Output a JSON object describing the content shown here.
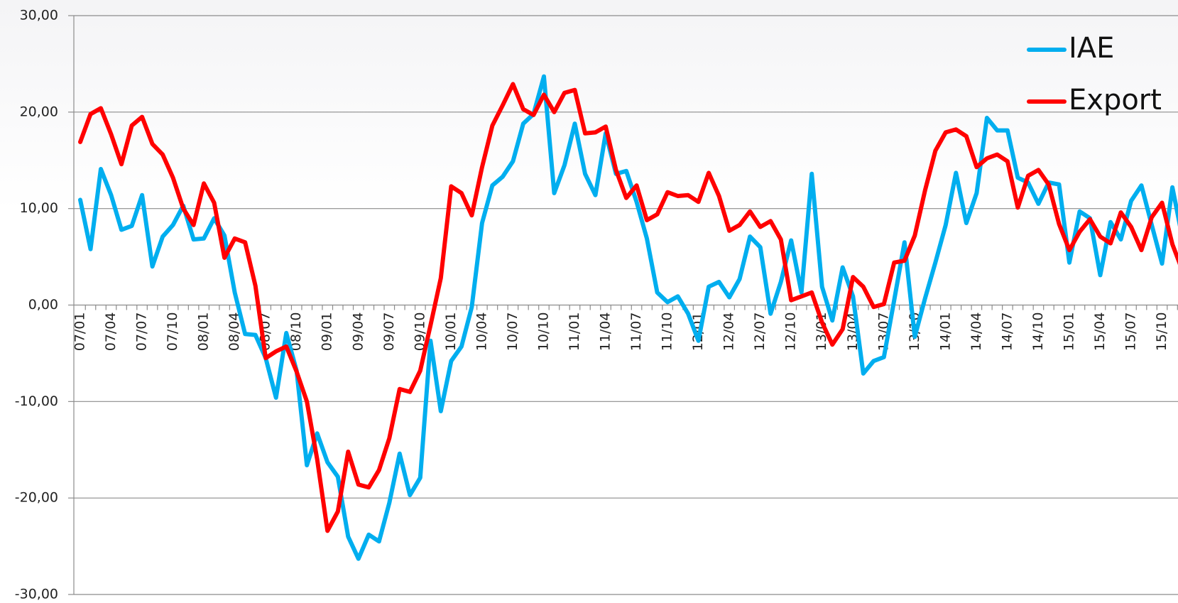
{
  "chart_data": {
    "type": "line",
    "categories": [
      "07/01",
      null,
      null,
      "07/04",
      null,
      null,
      "07/07",
      null,
      null,
      "07/10",
      null,
      null,
      "08/01",
      null,
      null,
      "08/04",
      null,
      null,
      "08/07",
      null,
      null,
      "08/10",
      null,
      null,
      "09/01",
      null,
      null,
      "09/04",
      null,
      null,
      "09/07",
      null,
      null,
      "09/10",
      null,
      null,
      "10/01",
      null,
      null,
      "10/04",
      null,
      null,
      "10/07",
      null,
      null,
      "10/10",
      null,
      null,
      "11/01",
      null,
      null,
      "11/04",
      null,
      null,
      "11/07",
      null,
      null,
      "11/10",
      null,
      null,
      "12/01",
      null,
      null,
      "12/04",
      null,
      null,
      "12/07",
      null,
      null,
      "12/10",
      null,
      null,
      "13/01",
      null,
      null,
      "13/04",
      null,
      null,
      "13/07",
      null,
      null,
      "13/10",
      null,
      null,
      "14/01",
      null,
      null,
      "14/04",
      null,
      null,
      "14/07",
      null,
      null,
      "14/10",
      null,
      null,
      "15/01",
      null,
      null,
      "15/04",
      null,
      null,
      "15/07",
      null,
      null,
      "15/10",
      null,
      null
    ],
    "series": [
      {
        "name": "IAE",
        "color": "#00aeef",
        "values": [
          10.9,
          5.8,
          14.1,
          11.4,
          7.8,
          8.2,
          11.4,
          4.0,
          7.1,
          8.3,
          10.3,
          6.8,
          6.9,
          9.0,
          7.2,
          1.3,
          -3.0,
          -3.1,
          -5.5,
          -9.6,
          -2.9,
          -6.8,
          -16.6,
          -13.3,
          -16.3,
          -17.8,
          -24.0,
          -26.3,
          -23.8,
          -24.5,
          -20.5,
          -15.4,
          -19.7,
          -17.9,
          -3.7,
          -11.0,
          -5.8,
          -4.3,
          -0.2,
          8.5,
          12.4,
          13.3,
          14.9,
          18.8,
          19.8,
          23.7,
          11.6,
          14.5,
          18.8,
          13.6,
          11.4,
          17.8,
          13.6,
          13.9,
          10.7,
          6.9,
          1.3,
          0.3,
          0.9,
          -0.9,
          -3.7,
          1.9,
          2.4,
          0.8,
          2.7,
          7.1,
          6.0,
          -0.9,
          2.4,
          6.7,
          1.3,
          13.6,
          1.9,
          -1.6,
          3.9,
          0.9,
          -7.1,
          -5.8,
          -5.4,
          0.5,
          6.5,
          -3.3,
          0.7,
          4.4,
          8.3,
          13.7,
          8.5,
          11.6,
          19.4,
          18.1,
          18.1,
          13.2,
          12.7,
          10.5,
          12.7,
          12.5,
          4.4,
          9.7,
          9.0,
          3.1,
          8.6,
          6.8,
          10.8,
          12.4,
          8.3,
          4.3,
          12.2,
          6.8
        ]
      },
      {
        "name": "Export",
        "color": "#ff0000",
        "values": [
          16.9,
          19.8,
          20.4,
          17.7,
          14.6,
          18.6,
          19.5,
          16.7,
          15.6,
          13.2,
          10.0,
          8.3,
          12.6,
          10.6,
          4.9,
          6.9,
          6.5,
          2.0,
          -5.5,
          -4.8,
          -4.3,
          -6.9,
          -10.0,
          -16.0,
          -23.4,
          -21.4,
          -15.2,
          -18.6,
          -18.9,
          -17.1,
          -13.8,
          -8.7,
          -9.0,
          -6.8,
          -2.1,
          2.8,
          12.3,
          11.6,
          9.3,
          14.3,
          18.6,
          20.7,
          22.9,
          20.3,
          19.7,
          21.8,
          20.0,
          22.0,
          22.3,
          17.8,
          17.9,
          18.5,
          14.0,
          11.1,
          12.4,
          8.8,
          9.4,
          11.7,
          11.3,
          11.4,
          10.7,
          13.7,
          11.3,
          7.7,
          8.3,
          9.7,
          8.1,
          8.7,
          6.8,
          0.5,
          0.9,
          1.3,
          -1.8,
          -4.1,
          -2.5,
          2.9,
          1.9,
          -0.2,
          0.1,
          4.4,
          4.6,
          7.2,
          11.9,
          16.0,
          17.9,
          18.2,
          17.5,
          14.3,
          15.2,
          15.6,
          14.9,
          10.1,
          13.4,
          14.0,
          12.5,
          8.4,
          5.7,
          7.6,
          8.9,
          7.1,
          6.4,
          9.6,
          8.1,
          5.7,
          9.1,
          10.6,
          6.3,
          3.5
        ]
      }
    ],
    "ylim": [
      -30,
      30
    ],
    "yticks": [
      {
        "value": -30,
        "label": "-30,00"
      },
      {
        "value": -20,
        "label": "-20,00"
      },
      {
        "value": -10,
        "label": "-10,00"
      },
      {
        "value": 0,
        "label": "0,00"
      },
      {
        "value": 10,
        "label": "10,00"
      },
      {
        "value": 20,
        "label": "20,00"
      },
      {
        "value": 30,
        "label": "30,00"
      }
    ],
    "grid": true,
    "legend": "upper right"
  }
}
